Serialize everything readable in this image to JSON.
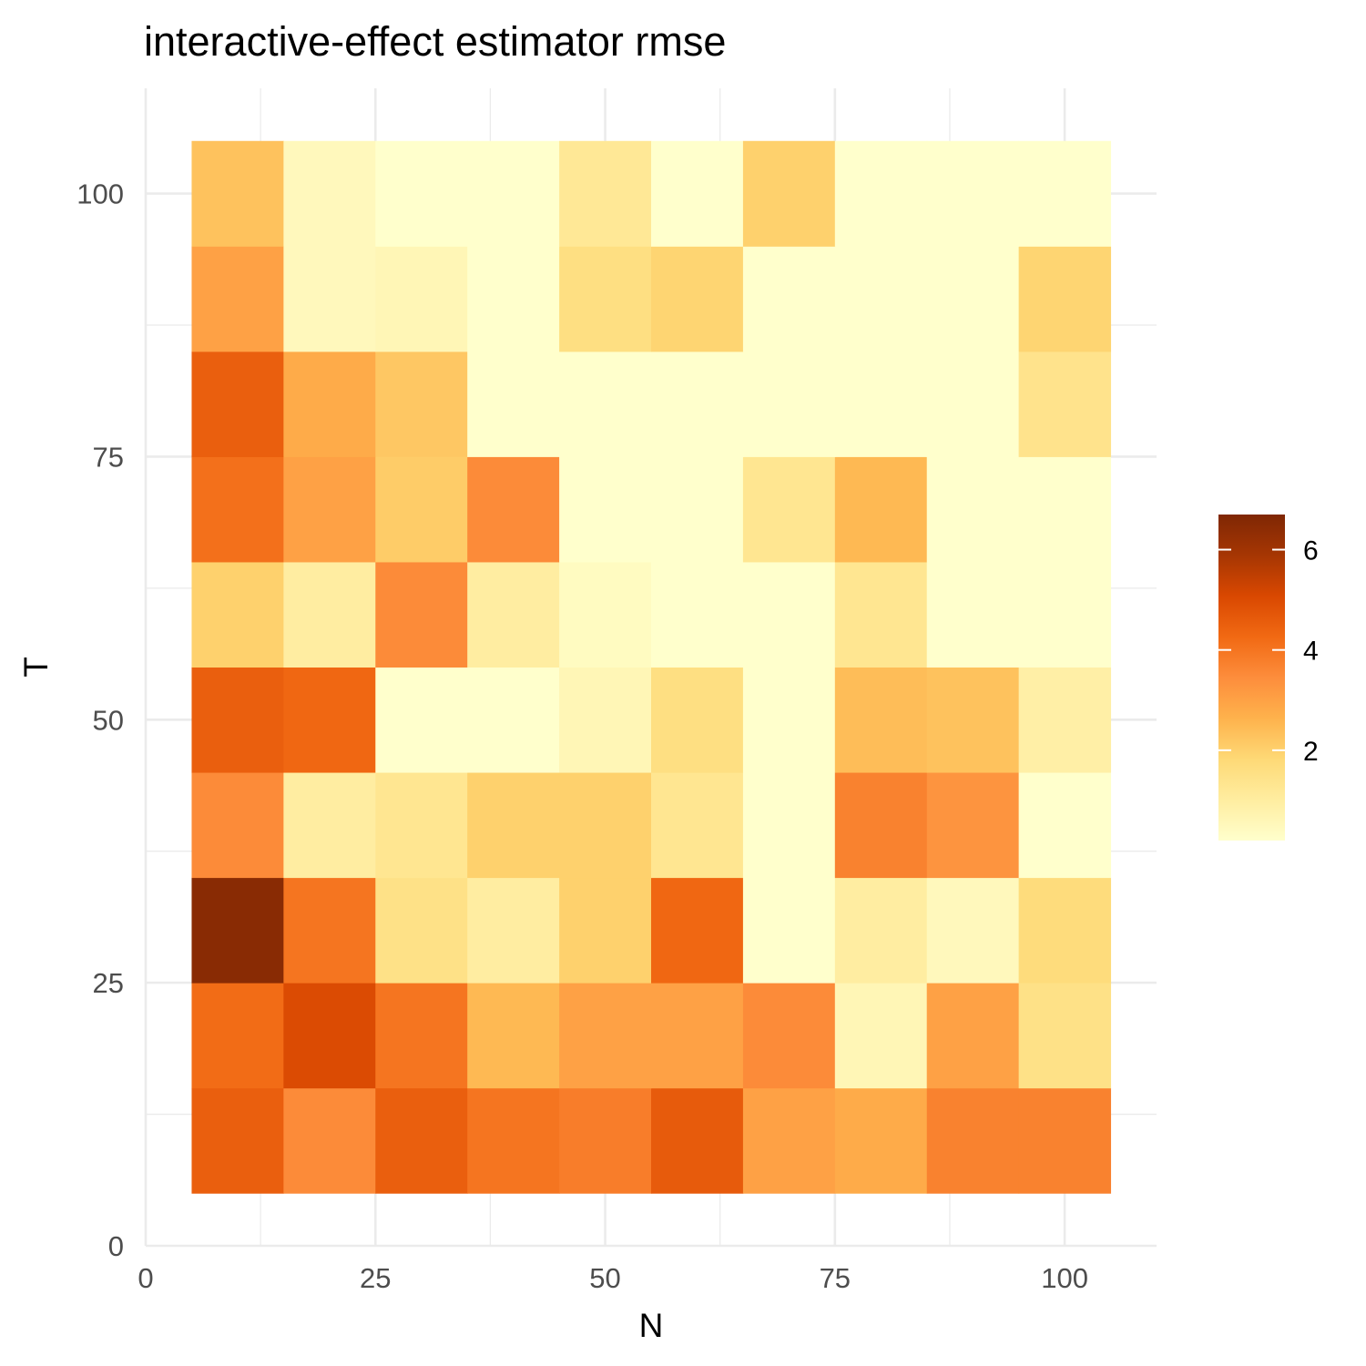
{
  "chart_data": {
    "type": "heatmap",
    "title": "interactive-effect estimator rmse",
    "xlabel": "N",
    "ylabel": "T",
    "x": [
      10,
      20,
      30,
      40,
      50,
      60,
      70,
      80,
      90,
      100
    ],
    "y": [
      10,
      20,
      30,
      40,
      50,
      60,
      70,
      80,
      90,
      100
    ],
    "xlim": [
      0,
      110
    ],
    "ylim": [
      0,
      110
    ],
    "xticks": [
      0,
      25,
      50,
      75,
      100
    ],
    "yticks": [
      0,
      25,
      50,
      75,
      100
    ],
    "values": [
      [
        4.5,
        3.5,
        4.5,
        4.0,
        3.8,
        4.6,
        3.0,
        2.8,
        3.7,
        3.7
      ],
      [
        4.2,
        5.0,
        4.0,
        2.5,
        3.0,
        3.0,
        3.5,
        0.6,
        3.0,
        1.5
      ],
      [
        6.5,
        4.0,
        1.5,
        1.0,
        2.0,
        4.3,
        0.2,
        1.0,
        0.5,
        1.7
      ],
      [
        3.5,
        1.0,
        1.3,
        2.0,
        2.0,
        1.3,
        0.2,
        3.7,
        3.3,
        0.2
      ],
      [
        4.5,
        4.3,
        0.2,
        0.2,
        0.6,
        1.6,
        0.2,
        2.4,
        2.3,
        0.9
      ],
      [
        2.0,
        1.0,
        3.5,
        1.0,
        0.4,
        0.2,
        0.2,
        1.3,
        0.2,
        0.2
      ],
      [
        4.1,
        3.0,
        2.1,
        3.5,
        0.2,
        0.2,
        1.3,
        2.5,
        0.2,
        0.2
      ],
      [
        4.5,
        2.8,
        2.2,
        0.2,
        0.2,
        0.2,
        0.2,
        0.2,
        0.2,
        1.4
      ],
      [
        3.0,
        0.5,
        0.6,
        0.2,
        1.6,
        1.9,
        0.2,
        0.2,
        0.2,
        1.9
      ],
      [
        2.3,
        0.5,
        0.2,
        0.2,
        1.2,
        0.2,
        2.0,
        0.2,
        0.2,
        0.2
      ]
    ],
    "color_scale": {
      "min": 0.2,
      "max": 6.7,
      "ticks": [
        2,
        4,
        6
      ],
      "colors": [
        "#ffffcc",
        "#ffeda0",
        "#fed976",
        "#feb24c",
        "#fd8d3c",
        "#f16913",
        "#d94801",
        "#a63603",
        "#7f2704"
      ]
    },
    "legend_position": "right",
    "grid": true
  }
}
